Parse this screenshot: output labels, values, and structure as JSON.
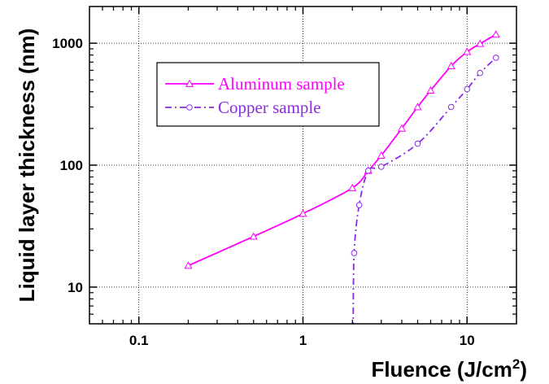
{
  "chart_data": {
    "type": "line",
    "title": "",
    "xlabel": "Fluence (J/cm",
    "xlabel_superscript": "2",
    "xlabel_suffix": ")",
    "ylabel": "Liquid layer thickness (nm)",
    "x_scale": "log",
    "y_scale": "log",
    "xlim": [
      0.05,
      20
    ],
    "ylim": [
      5,
      2000
    ],
    "x_ticks": [
      0.1,
      1,
      10
    ],
    "x_tick_labels": [
      "0.1",
      "1",
      "10"
    ],
    "y_ticks": [
      10,
      100,
      1000
    ],
    "y_tick_labels": [
      "10",
      "100",
      "1000"
    ],
    "grid": true,
    "legend_position": "upper-left",
    "series": [
      {
        "name": "Aluminum sample",
        "color": "#ff00ff",
        "marker": "triangle",
        "line_style": "solid",
        "x": [
          0.2,
          0.5,
          1,
          2,
          2.5,
          3,
          4,
          5,
          6,
          8,
          10,
          12,
          15
        ],
        "y": [
          15,
          26,
          40,
          65,
          90,
          120,
          200,
          300,
          410,
          650,
          850,
          990,
          1180
        ]
      },
      {
        "name": "Copper sample",
        "color": "#8a2be2",
        "marker": "circle",
        "line_style": "dash-dot",
        "x": [
          2.05,
          2.2,
          2.5,
          3,
          5,
          8,
          10,
          12,
          15
        ],
        "y": [
          19,
          47,
          90,
          97,
          150,
          300,
          420,
          570,
          760
        ]
      }
    ]
  }
}
